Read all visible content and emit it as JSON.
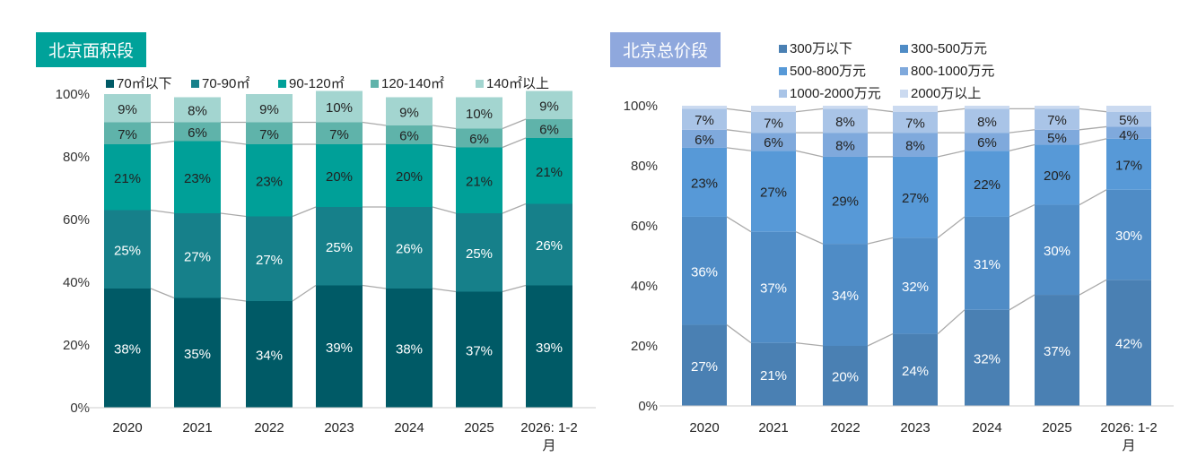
{
  "chart_data": [
    {
      "type": "bar",
      "stacked": true,
      "title": "北京面积段",
      "categories": [
        "2020",
        "2021",
        "2022",
        "2023",
        "2024",
        "2025",
        "2026: 1-2月"
      ],
      "series": [
        {
          "name": "70㎡以下",
          "color": "#005a66",
          "values": [
            38,
            35,
            34,
            39,
            38,
            37,
            39
          ]
        },
        {
          "name": "70-90㎡",
          "color": "#16808a",
          "values": [
            25,
            27,
            27,
            25,
            26,
            25,
            26
          ]
        },
        {
          "name": "90-120㎡",
          "color": "#00a098",
          "values": [
            21,
            23,
            23,
            20,
            20,
            21,
            21
          ]
        },
        {
          "name": "120-140㎡",
          "color": "#5fb3aa",
          "values": [
            7,
            6,
            7,
            7,
            6,
            6,
            6
          ]
        },
        {
          "name": "140㎡以上",
          "color": "#a3d5d0",
          "values": [
            9,
            8,
            9,
            10,
            9,
            10,
            9
          ]
        }
      ],
      "yticks": [
        "0%",
        "20%",
        "40%",
        "60%",
        "80%",
        "100%"
      ],
      "ylim": [
        0,
        100
      ],
      "legend": "top"
    },
    {
      "type": "bar",
      "stacked": true,
      "title": "北京总价段",
      "categories": [
        "2020",
        "2021",
        "2022",
        "2023",
        "2024",
        "2025",
        "2026: 1-2月"
      ],
      "series": [
        {
          "name": "300万以下",
          "color": "#4a80b3",
          "values": [
            27,
            21,
            20,
            24,
            32,
            37,
            42
          ]
        },
        {
          "name": "300-500万元",
          "color": "#4f8cc6",
          "values": [
            36,
            37,
            34,
            32,
            31,
            30,
            30
          ]
        },
        {
          "name": "500-800万元",
          "color": "#5799d7",
          "values": [
            23,
            27,
            29,
            27,
            22,
            20,
            17
          ]
        },
        {
          "name": "800-1000万元",
          "color": "#7fa9dc",
          "values": [
            6,
            6,
            8,
            8,
            6,
            5,
            4
          ]
        },
        {
          "name": "1000-2000万元",
          "color": "#a9c4e7",
          "values": [
            7,
            7,
            8,
            7,
            8,
            7,
            5
          ]
        },
        {
          "name": "2000万以上",
          "color": "#cbdaf0",
          "values": [
            1,
            2,
            1,
            2,
            1,
            1,
            2
          ]
        }
      ],
      "yticks": [
        "0%",
        "20%",
        "40%",
        "60%",
        "80%",
        "100%"
      ],
      "ylim": [
        0,
        100
      ],
      "legend": "top"
    }
  ]
}
